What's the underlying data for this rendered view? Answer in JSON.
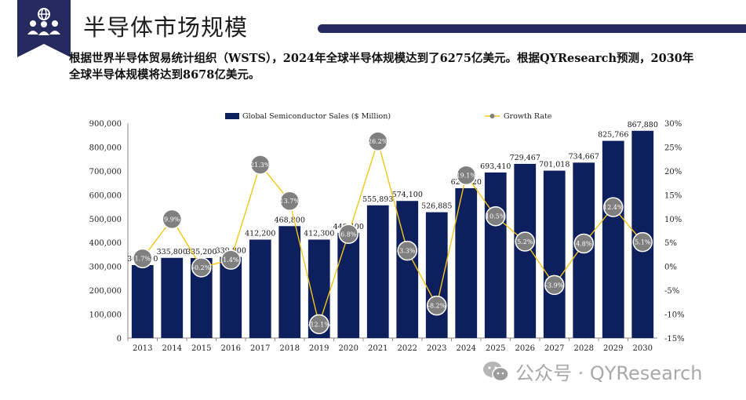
{
  "header": {
    "title": "半导体市场规模",
    "description": "根据世界半导体贸易统计组织（WSTS），2024年全球半导体规模达到了6275亿美元。根据QYResearch预测，2030年全球半导体规模将达到8678亿美元。"
  },
  "watermark": {
    "text": "公众号 · QYResearch",
    "icon": "wechat-icon"
  },
  "colors": {
    "bar": "#0d1f5c",
    "line": "#f5c518",
    "marker": "#7f7f7f",
    "accent": "#252b5e"
  },
  "chart_data": {
    "type": "bar",
    "categories": [
      "2013",
      "2014",
      "2015",
      "2016",
      "2017",
      "2018",
      "2019",
      "2020",
      "2021",
      "2022",
      "2023",
      "2024",
      "2025",
      "2026",
      "2027",
      "2028",
      "2029",
      "2030"
    ],
    "series": [
      {
        "name": "Global Semiconductor Sales ($ Million)",
        "type": "bar",
        "axis": "left",
        "values": [
          305600,
          335800,
          335200,
          339800,
          412200,
          468800,
          412300,
          440400,
          555893,
          574100,
          526885,
          627520,
          693410,
          729467,
          701018,
          734667,
          825766,
          867880
        ],
        "labels": [
          "305,600",
          "335,800",
          "335,200",
          "339,800",
          "412,200",
          "468,800",
          "412,300",
          "440,400",
          "555,893",
          "574,100",
          "526,885",
          "627,520",
          "693,410",
          "729,467",
          "701,018",
          "734,667",
          "825,766",
          "867,880"
        ]
      },
      {
        "name": "Growth Rate",
        "type": "line",
        "axis": "right",
        "values": [
          1.7,
          9.9,
          -0.2,
          1.4,
          21.3,
          13.7,
          -12.1,
          6.8,
          26.2,
          3.3,
          -8.2,
          19.1,
          10.5,
          5.2,
          -3.9,
          4.8,
          12.4,
          5.1
        ],
        "labels": [
          "1.7%",
          "9.9%",
          "-0.2%",
          "1.4%",
          "21.3%",
          "13.7%",
          "-12.1%",
          "6.8%",
          "26.2%",
          "3.3%",
          "-8.2%",
          "19.1%",
          "10.5%",
          "5.2%",
          "-3.9%",
          "4.8%",
          "12.4%",
          "5.1%"
        ]
      }
    ],
    "y_left": {
      "lim": [
        0,
        900000
      ],
      "ticks": [
        "0",
        "100,000",
        "200,000",
        "300,000",
        "400,000",
        "500,000",
        "600,000",
        "700,000",
        "800,000",
        "900,000"
      ]
    },
    "y_right": {
      "lim": [
        -15,
        30
      ],
      "ticks": [
        "-15%",
        "-10%",
        "-5%",
        "0%",
        "5%",
        "10%",
        "15%",
        "20%",
        "25%",
        "30%"
      ]
    },
    "legend_position": "top",
    "grid": false
  }
}
